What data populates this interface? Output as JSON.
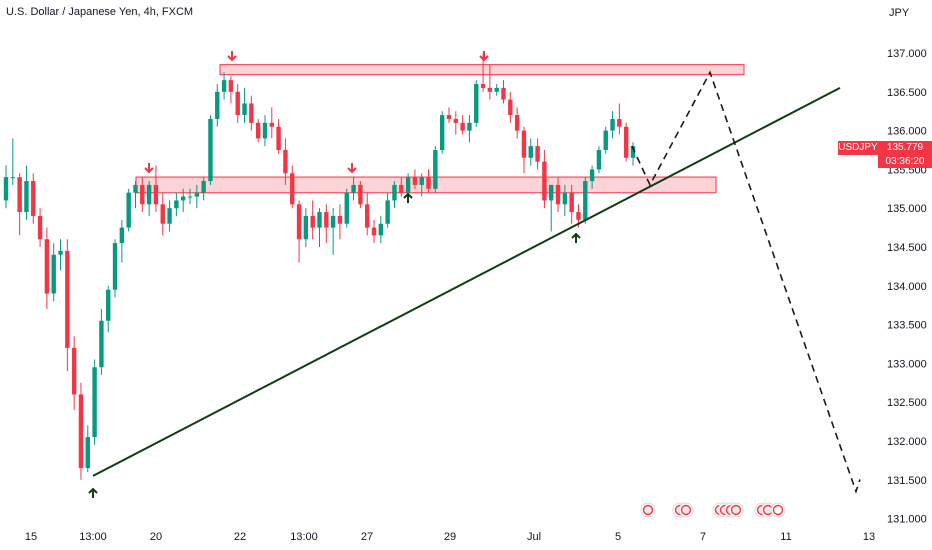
{
  "title": "U.S. Dollar / Japanese Yen, 4h, FXCM",
  "unit": "JPY",
  "symbol_tag": "USDJPY",
  "last_price": "135.779",
  "countdown": "03:36:20",
  "colors": {
    "up": "#089981",
    "down": "#f23645",
    "trendline": "#0f3d14",
    "zone": "#f23645"
  },
  "chart_data": {
    "type": "candlestick",
    "ylim": [
      131.0,
      137.25
    ],
    "y_ticks": [
      "137.000",
      "136.500",
      "136.000",
      "135.500",
      "135.000",
      "134.500",
      "134.000",
      "133.500",
      "133.000",
      "132.500",
      "132.000",
      "131.500",
      "131.000"
    ],
    "x_ticks": [
      "15",
      "13:00",
      "20",
      "22",
      "13:00",
      "27",
      "29",
      "Jul",
      "5",
      "7",
      "11",
      "13"
    ],
    "candles": [
      [
        135.1,
        135.55,
        135.0,
        135.4
      ],
      [
        135.4,
        135.9,
        135.3,
        135.4
      ],
      [
        135.4,
        135.45,
        134.65,
        134.95
      ],
      [
        134.95,
        135.55,
        134.85,
        135.35
      ],
      [
        135.35,
        135.45,
        134.8,
        134.9
      ],
      [
        134.9,
        135.0,
        134.5,
        134.6
      ],
      [
        134.6,
        134.75,
        133.7,
        133.9
      ],
      [
        133.9,
        134.55,
        133.8,
        134.4
      ],
      [
        134.4,
        134.6,
        134.2,
        134.45
      ],
      [
        134.45,
        134.6,
        132.9,
        133.2
      ],
      [
        133.2,
        133.35,
        132.4,
        132.6
      ],
      [
        132.6,
        132.75,
        131.5,
        131.65
      ],
      [
        131.65,
        132.2,
        131.6,
        132.05
      ],
      [
        132.05,
        133.05,
        131.95,
        132.95
      ],
      [
        132.95,
        133.7,
        132.85,
        133.55
      ],
      [
        133.55,
        134.0,
        133.4,
        133.95
      ],
      [
        133.95,
        134.6,
        133.85,
        134.55
      ],
      [
        134.55,
        134.85,
        134.3,
        134.75
      ],
      [
        134.75,
        135.25,
        134.7,
        135.2
      ],
      [
        135.2,
        135.35,
        135.0,
        135.3
      ],
      [
        135.3,
        135.4,
        134.95,
        135.05
      ],
      [
        135.05,
        135.35,
        134.9,
        135.3
      ],
      [
        135.3,
        135.55,
        134.95,
        135.05
      ],
      [
        135.05,
        135.2,
        134.65,
        134.8
      ],
      [
        134.8,
        135.1,
        134.7,
        135.0
      ],
      [
        135.0,
        135.2,
        134.9,
        135.1
      ],
      [
        135.1,
        135.25,
        134.95,
        135.15
      ],
      [
        135.15,
        135.25,
        135.05,
        135.15
      ],
      [
        135.15,
        135.3,
        135.0,
        135.2
      ],
      [
        135.2,
        135.4,
        135.1,
        135.35
      ],
      [
        135.35,
        136.2,
        135.3,
        136.15
      ],
      [
        136.15,
        136.6,
        136.05,
        136.5
      ],
      [
        136.5,
        136.75,
        136.4,
        136.65
      ],
      [
        136.65,
        136.7,
        136.35,
        136.5
      ],
      [
        136.5,
        136.6,
        136.1,
        136.2
      ],
      [
        136.2,
        136.55,
        136.1,
        136.35
      ],
      [
        136.35,
        136.45,
        136.0,
        136.1
      ],
      [
        136.1,
        136.15,
        135.85,
        135.9
      ],
      [
        135.9,
        136.2,
        135.8,
        136.1
      ],
      [
        136.1,
        136.3,
        135.9,
        136.05
      ],
      [
        136.05,
        136.15,
        135.7,
        135.75
      ],
      [
        135.75,
        135.9,
        135.3,
        135.45
      ],
      [
        135.45,
        135.55,
        135.0,
        135.05
      ],
      [
        135.05,
        135.1,
        134.3,
        134.6
      ],
      [
        134.6,
        135.0,
        134.5,
        134.9
      ],
      [
        134.9,
        135.1,
        134.6,
        134.75
      ],
      [
        134.75,
        135.0,
        134.5,
        134.95
      ],
      [
        134.95,
        135.05,
        134.55,
        134.75
      ],
      [
        134.75,
        135.0,
        134.4,
        134.9
      ],
      [
        134.9,
        135.05,
        134.6,
        134.8
      ],
      [
        134.8,
        135.25,
        134.75,
        135.2
      ],
      [
        135.2,
        135.4,
        135.1,
        135.3
      ],
      [
        135.3,
        135.35,
        135.0,
        135.05
      ],
      [
        135.05,
        135.2,
        134.65,
        134.75
      ],
      [
        134.75,
        134.85,
        134.55,
        134.65
      ],
      [
        134.65,
        134.9,
        134.55,
        134.8
      ],
      [
        134.8,
        135.2,
        134.75,
        135.1
      ],
      [
        135.1,
        135.35,
        135.0,
        135.3
      ],
      [
        135.3,
        135.4,
        135.15,
        135.2
      ],
      [
        135.2,
        135.45,
        135.1,
        135.4
      ],
      [
        135.4,
        135.5,
        135.25,
        135.3
      ],
      [
        135.3,
        135.45,
        135.15,
        135.4
      ],
      [
        135.4,
        135.5,
        135.2,
        135.25
      ],
      [
        135.25,
        135.8,
        135.2,
        135.75
      ],
      [
        135.75,
        136.25,
        135.7,
        136.2
      ],
      [
        136.2,
        136.3,
        136.1,
        136.15
      ],
      [
        136.15,
        136.25,
        135.95,
        136.1
      ],
      [
        136.1,
        136.2,
        135.95,
        136.0
      ],
      [
        136.0,
        136.2,
        135.85,
        136.1
      ],
      [
        136.1,
        136.65,
        136.05,
        136.6
      ],
      [
        136.6,
        137.0,
        136.5,
        136.55
      ],
      [
        136.55,
        136.85,
        136.4,
        136.5
      ],
      [
        136.5,
        136.6,
        136.45,
        136.55
      ],
      [
        136.55,
        136.65,
        136.35,
        136.4
      ],
      [
        136.4,
        136.5,
        136.1,
        136.2
      ],
      [
        136.2,
        136.3,
        135.9,
        136.0
      ],
      [
        136.0,
        136.05,
        135.45,
        135.65
      ],
      [
        135.65,
        135.9,
        135.55,
        135.8
      ],
      [
        135.8,
        135.9,
        135.5,
        135.6
      ],
      [
        135.6,
        135.75,
        135.0,
        135.1
      ],
      [
        135.1,
        135.3,
        134.7,
        135.3
      ],
      [
        135.3,
        135.4,
        134.95,
        135.05
      ],
      [
        135.05,
        135.3,
        134.9,
        135.2
      ],
      [
        135.2,
        135.3,
        134.8,
        134.95
      ],
      [
        134.95,
        135.05,
        134.75,
        134.85
      ],
      [
        134.85,
        135.4,
        134.8,
        135.35
      ],
      [
        135.35,
        135.55,
        135.25,
        135.5
      ],
      [
        135.5,
        135.8,
        135.45,
        135.75
      ],
      [
        135.75,
        136.05,
        135.7,
        136.0
      ],
      [
        136.0,
        136.25,
        135.9,
        136.15
      ],
      [
        136.15,
        136.35,
        135.95,
        136.05
      ],
      [
        136.05,
        136.1,
        135.6,
        135.65
      ],
      [
        135.65,
        135.85,
        135.55,
        135.8
      ]
    ],
    "resistance_zone": [
      136.72,
      136.85
    ],
    "support_zone": [
      135.25,
      135.35
    ],
    "trendline": [
      [
        131.55
      ],
      [
        136.55
      ]
    ],
    "projection": [
      135.8,
      135.3,
      136.75,
      131.35
    ],
    "down_arrows": 4,
    "up_arrows": 4
  }
}
